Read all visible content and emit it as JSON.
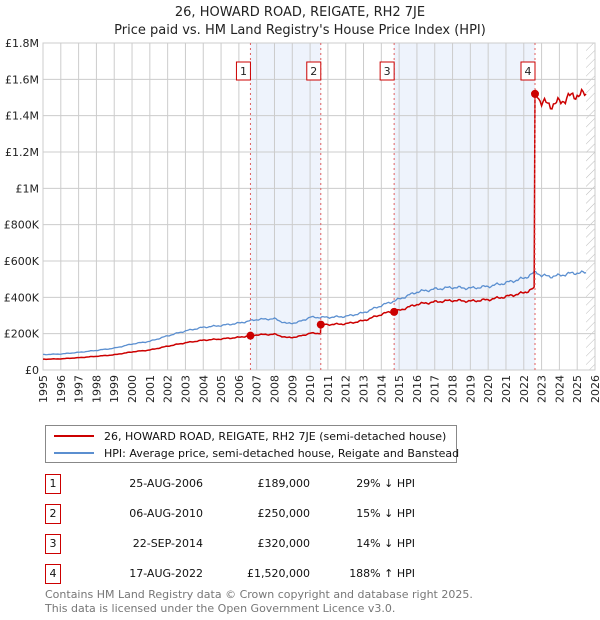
{
  "chart_data": {
    "type": "line",
    "title": "26, HOWARD ROAD, REIGATE, RH2 7JE",
    "subtitle": "Price paid vs. HM Land Registry's House Price Index (HPI)",
    "xlim": [
      1995,
      2026
    ],
    "ylim": [
      0,
      1800000
    ],
    "x_ticks": [
      "1995",
      "1996",
      "1997",
      "1998",
      "1999",
      "2000",
      "2001",
      "2002",
      "2003",
      "2004",
      "2005",
      "2006",
      "2007",
      "2008",
      "2009",
      "2010",
      "2011",
      "2012",
      "2013",
      "2014",
      "2015",
      "2016",
      "2017",
      "2018",
      "2019",
      "2020",
      "2021",
      "2022",
      "2023",
      "2024",
      "2025",
      "2026"
    ],
    "y_ticks": [
      {
        "v": 0,
        "label": "£0"
      },
      {
        "v": 200000,
        "label": "£200K"
      },
      {
        "v": 400000,
        "label": "£400K"
      },
      {
        "v": 600000,
        "label": "£600K"
      },
      {
        "v": 800000,
        "label": "£800K"
      },
      {
        "v": 1000000,
        "label": "£1M"
      },
      {
        "v": 1200000,
        "label": "£1.2M"
      },
      {
        "v": 1400000,
        "label": "£1.4M"
      },
      {
        "v": 1600000,
        "label": "£1.6M"
      },
      {
        "v": 1800000,
        "label": "£1.8M"
      }
    ],
    "grid": true,
    "hpi_series": {
      "name": "HPI: Average price, semi-detached house, Reigate and Banstead",
      "color": "#5b8fd0",
      "x": [
        1995,
        1996,
        1997,
        1998,
        1999,
        2000,
        2001,
        2002,
        2003,
        2004,
        2005,
        2006,
        2007,
        2008,
        2008.7,
        2009.3,
        2010,
        2011,
        2012,
        2013,
        2014,
        2015,
        2016,
        2017,
        2018,
        2019,
        2020,
        2021,
        2022,
        2022.7,
        2023,
        2023.5,
        2024,
        2024.5,
        2025,
        2025.5
      ],
      "y": [
        85000,
        88000,
        97000,
        108000,
        120000,
        143000,
        158000,
        188000,
        215000,
        235000,
        245000,
        258000,
        278000,
        282000,
        255000,
        262000,
        290000,
        290000,
        295000,
        315000,
        355000,
        390000,
        430000,
        445000,
        455000,
        450000,
        460000,
        480000,
        505000,
        540000,
        520000,
        515000,
        520000,
        530000,
        535000,
        535000
      ]
    },
    "property_series": {
      "name": "26, HOWARD ROAD, REIGATE, RH2 7JE (semi-detached house)",
      "color": "#cc0000"
    },
    "sales": [
      {
        "n": "1",
        "x": 2006.65,
        "date": "25-AUG-2006",
        "price": 189000,
        "price_label": "£189,000",
        "hpi": "29% ↓ HPI"
      },
      {
        "n": "2",
        "x": 2010.6,
        "date": "06-AUG-2010",
        "price": 250000,
        "price_label": "£250,000",
        "hpi": "15% ↓ HPI"
      },
      {
        "n": "3",
        "x": 2014.72,
        "date": "22-SEP-2014",
        "price": 320000,
        "price_label": "£320,000",
        "hpi": "14% ↓ HPI"
      },
      {
        "n": "4",
        "x": 2022.63,
        "date": "17-AUG-2022",
        "price": 1520000,
        "price_label": "£1,520,000",
        "hpi": "188% ↑ HPI"
      }
    ],
    "shaded": [
      [
        2006.65,
        2010.6
      ],
      [
        2014.72,
        2022.63
      ]
    ],
    "hatched_from": 2025.5
  },
  "footer": [
    "Contains HM Land Registry data © Crown copyright and database right 2025.",
    "This data is licensed under the Open Government Licence v3.0."
  ]
}
